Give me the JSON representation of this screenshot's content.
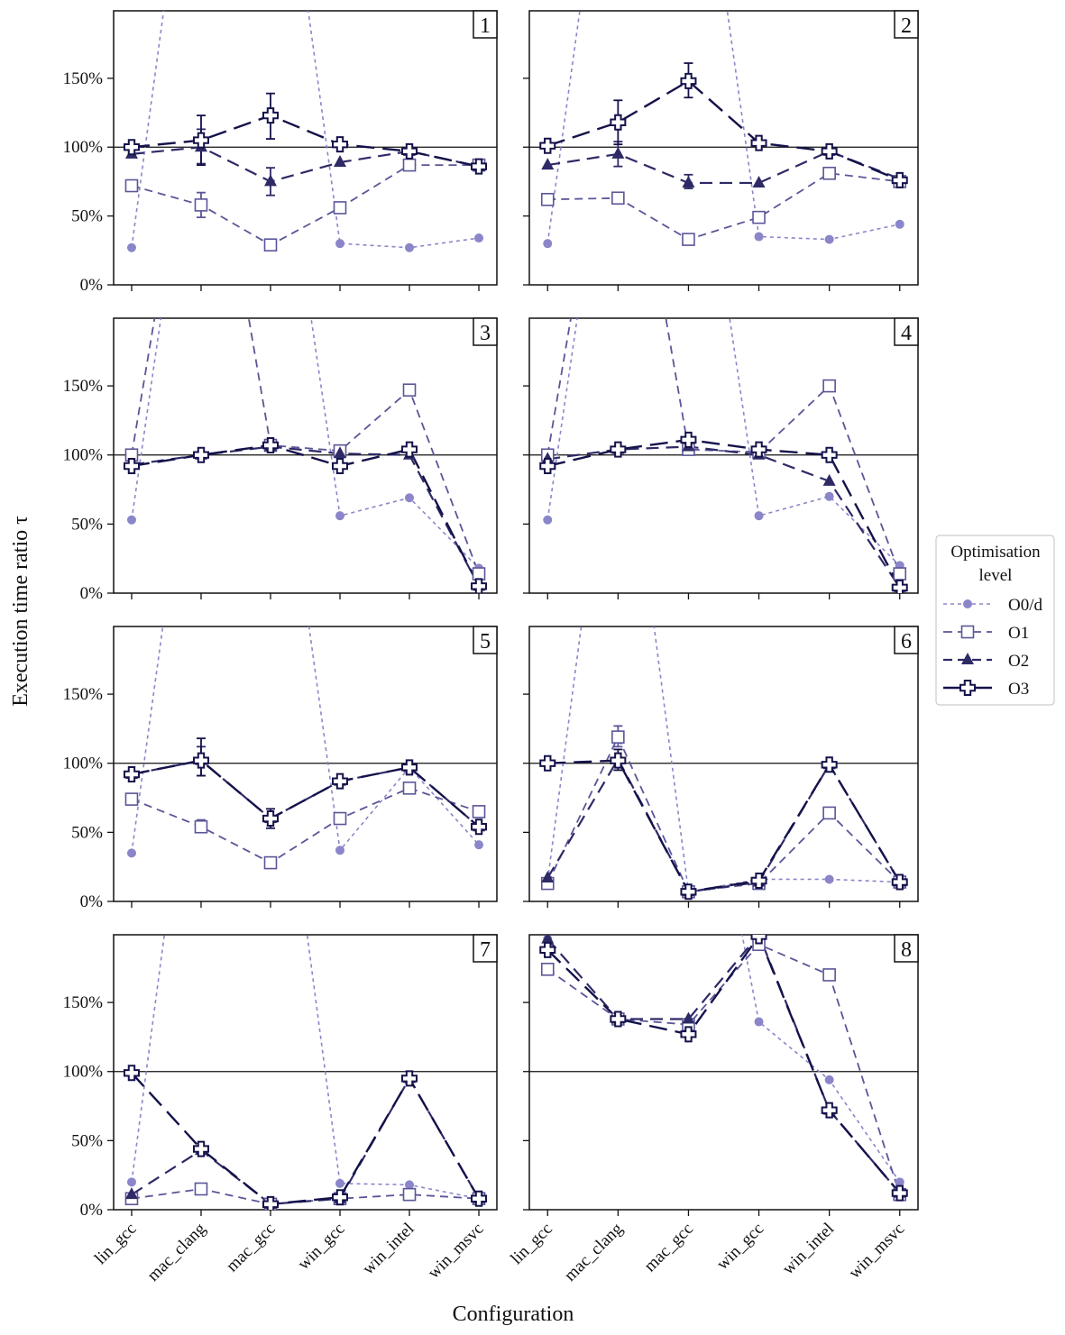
{
  "chart_data": {
    "type": "line",
    "ylabel": "Execution time ratio τ",
    "xlabel": "Configuration",
    "categories": [
      "lin_gcc",
      "mac_clang",
      "mac_gcc",
      "win_gcc",
      "win_intel",
      "win_msvc"
    ],
    "yticks": [
      0,
      50,
      100,
      150
    ],
    "ytick_labels": [
      "0%",
      "50%",
      "100%",
      "150%"
    ],
    "ylim": [
      0,
      199
    ],
    "reference_line": 100,
    "legend": {
      "title_line1": "Optimisation",
      "title_line2": "level",
      "placement": "right",
      "entries": [
        "O0/d",
        "O1",
        "O2",
        "O3"
      ]
    },
    "series_styles": [
      {
        "name": "O0/d",
        "color": "#8b86c9",
        "marker": "circle",
        "dash": "dotted"
      },
      {
        "name": "O1",
        "color": "#5a5698",
        "marker": "square-open",
        "dash": "dashed"
      },
      {
        "name": "O2",
        "color": "#2e2a66",
        "marker": "triangle",
        "dash": "long-dashed"
      },
      {
        "name": "O3",
        "color": "#14124a",
        "marker": "cross-open",
        "dash": "long-dash-dot"
      }
    ],
    "panels": [
      {
        "label": "1",
        "series": [
          {
            "name": "O0/d",
            "values": [
              27,
              400,
              400,
              30,
              27,
              34
            ]
          },
          {
            "name": "O1",
            "values": [
              72,
              58,
              29,
              56,
              87,
              87
            ]
          },
          {
            "name": "O2",
            "values": [
              95,
              100,
              75,
              89,
              97,
              86
            ]
          },
          {
            "name": "O3",
            "values": [
              100,
              105,
              123,
              102,
              97,
              86
            ]
          }
        ],
        "errors": [
          {
            "series": "O1",
            "category": "mac_clang",
            "low": 49,
            "high": 67
          },
          {
            "series": "O2",
            "category": "mac_clang",
            "low": 88,
            "high": 113
          },
          {
            "series": "O3",
            "category": "mac_clang",
            "low": 87,
            "high": 123
          },
          {
            "series": "O2",
            "category": "mac_gcc",
            "low": 65,
            "high": 85
          },
          {
            "series": "O3",
            "category": "mac_gcc",
            "low": 106,
            "high": 139
          }
        ]
      },
      {
        "label": "2",
        "series": [
          {
            "name": "O0/d",
            "values": [
              30,
              400,
              400,
              35,
              33,
              44
            ]
          },
          {
            "name": "O1",
            "values": [
              62,
              63,
              33,
              49,
              81,
              75
            ]
          },
          {
            "name": "O2",
            "values": [
              87,
              95,
              74,
              74,
              97,
              77
            ]
          },
          {
            "name": "O3",
            "values": [
              101,
              118,
              148,
              103,
              97,
              76
            ]
          }
        ],
        "errors": [
          {
            "series": "O2",
            "category": "mac_clang",
            "low": 86,
            "high": 104
          },
          {
            "series": "O3",
            "category": "mac_clang",
            "low": 102,
            "high": 134
          },
          {
            "series": "O2",
            "category": "mac_gcc",
            "low": 70,
            "high": 80
          },
          {
            "series": "O3",
            "category": "mac_gcc",
            "low": 136,
            "high": 161
          }
        ]
      },
      {
        "label": "3",
        "series": [
          {
            "name": "O0/d",
            "values": [
              53,
              400,
              400,
              56,
              69,
              18
            ]
          },
          {
            "name": "O1",
            "values": [
              100,
              400,
              107,
              103,
              147,
              14
            ]
          },
          {
            "name": "O2",
            "values": [
              93,
              100,
              106,
              101,
              100,
              5
            ]
          },
          {
            "name": "O3",
            "values": [
              92,
              100,
              107,
              92,
              104,
              5
            ]
          }
        ],
        "errors": []
      },
      {
        "label": "4",
        "series": [
          {
            "name": "O0/d",
            "values": [
              53,
              400,
              400,
              56,
              70,
              20
            ]
          },
          {
            "name": "O1",
            "values": [
              100,
              400,
              104,
              102,
              150,
              14
            ]
          },
          {
            "name": "O2",
            "values": [
              97,
              104,
              106,
              100,
              81,
              4
            ]
          },
          {
            "name": "O3",
            "values": [
              92,
              104,
              111,
              104,
              100,
              4
            ]
          }
        ],
        "errors": []
      },
      {
        "label": "5",
        "series": [
          {
            "name": "O0/d",
            "values": [
              35,
              400,
              400,
              37,
              97,
              41
            ]
          },
          {
            "name": "O1",
            "values": [
              74,
              54,
              28,
              60,
              82,
              65
            ]
          },
          {
            "name": "O2",
            "values": [
              92,
              102,
              60,
              87,
              97,
              54
            ]
          },
          {
            "name": "O3",
            "values": [
              92,
              102,
              60,
              87,
              97,
              54
            ]
          }
        ],
        "errors": [
          {
            "series": "O1",
            "category": "lin_gcc",
            "low": 70,
            "high": 78
          },
          {
            "series": "O1",
            "category": "mac_clang",
            "low": 50,
            "high": 59
          },
          {
            "series": "O2",
            "category": "mac_clang",
            "low": 91,
            "high": 112
          },
          {
            "series": "O3",
            "category": "mac_clang",
            "low": 91,
            "high": 118
          },
          {
            "series": "O3",
            "category": "mac_gcc",
            "low": 53,
            "high": 67
          }
        ]
      },
      {
        "label": "6",
        "series": [
          {
            "name": "O0/d",
            "values": [
              15,
              400,
              7,
              16,
              16,
              14
            ]
          },
          {
            "name": "O1",
            "values": [
              13,
              119,
              7,
              13,
              64,
              14
            ]
          },
          {
            "name": "O2",
            "values": [
              17,
              103,
              7,
              14,
              99,
              14
            ]
          },
          {
            "name": "O3",
            "values": [
              100,
              102,
              7,
              15,
              99,
              14
            ]
          }
        ],
        "errors": [
          {
            "series": "O1",
            "category": "mac_clang",
            "low": 112,
            "high": 127
          },
          {
            "series": "O3",
            "category": "mac_clang",
            "low": 95,
            "high": 110
          }
        ]
      },
      {
        "label": "7",
        "series": [
          {
            "name": "O0/d",
            "values": [
              20,
              400,
              400,
              19,
              18,
              8
            ]
          },
          {
            "name": "O1",
            "values": [
              8,
              15,
              4,
              8,
              11,
              8
            ]
          },
          {
            "name": "O2",
            "values": [
              11,
              43,
              4,
              8,
              95,
              8
            ]
          },
          {
            "name": "O3",
            "values": [
              99,
              44,
              4,
              9,
              95,
              8
            ]
          }
        ],
        "errors": []
      },
      {
        "label": "8",
        "series": [
          {
            "name": "O0/d",
            "values": [
              196,
              400,
              400,
              136,
              94,
              20
            ]
          },
          {
            "name": "O1",
            "values": [
              174,
              138,
              134,
              192,
              170,
              11
            ]
          },
          {
            "name": "O2",
            "values": [
              196,
              138,
              138,
              199,
              72,
              12
            ]
          },
          {
            "name": "O3",
            "values": [
              188,
              138,
              127,
              198,
              72,
              12
            ]
          }
        ],
        "errors": []
      }
    ]
  }
}
